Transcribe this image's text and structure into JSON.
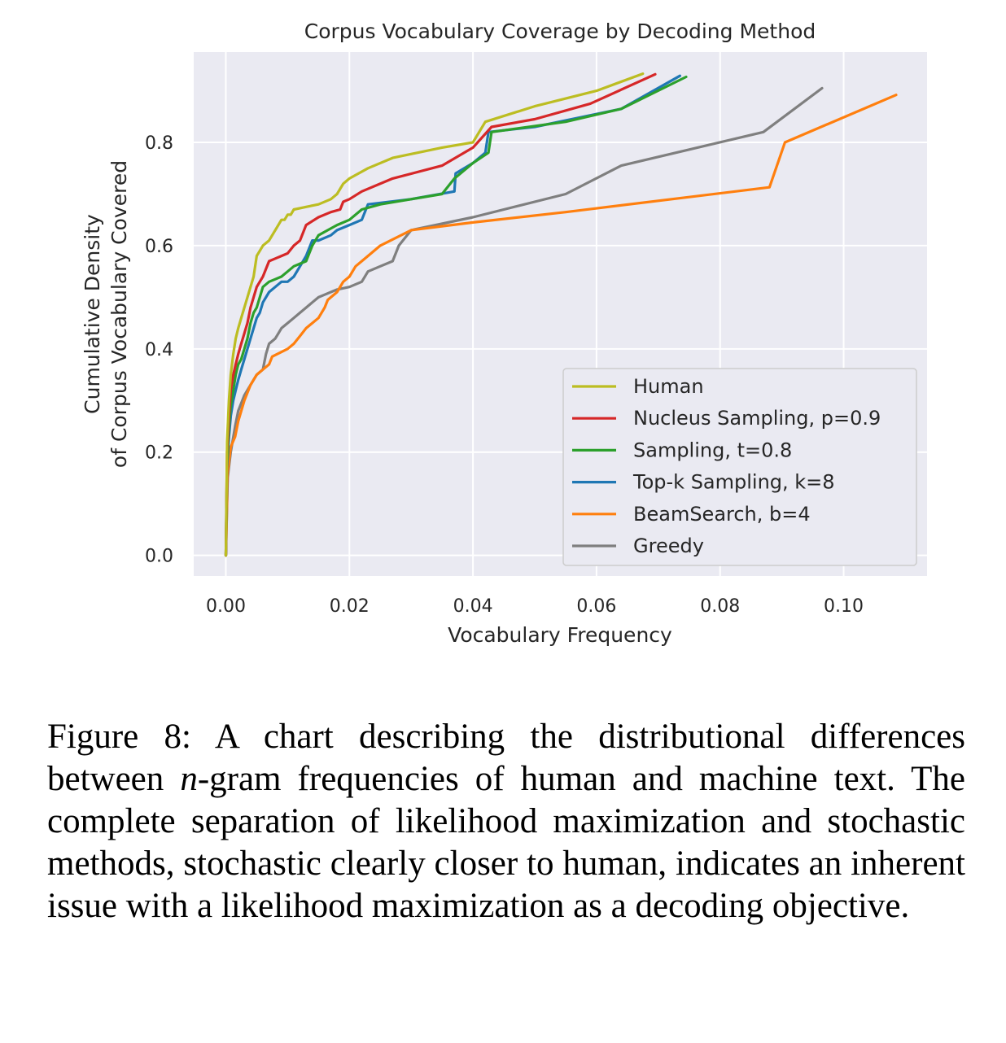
{
  "chart_data": {
    "type": "line",
    "title": "Corpus Vocabulary Coverage by Decoding Method",
    "xlabel": "Vocabulary Frequency",
    "ylabel": [
      "Cumulative Density",
      "of Corpus Vocabulary Covered"
    ],
    "xlim": [
      -0.0052,
      0.1135
    ],
    "ylim": [
      -0.04,
      0.975
    ],
    "xticks": [
      0.0,
      0.02,
      0.04,
      0.06,
      0.08,
      0.1
    ],
    "xtick_labels": [
      "0.00",
      "0.02",
      "0.04",
      "0.06",
      "0.08",
      "0.10"
    ],
    "yticks": [
      0.0,
      0.2,
      0.4,
      0.6,
      0.8
    ],
    "ytick_labels": [
      "0.0",
      "0.2",
      "0.4",
      "0.6",
      "0.8"
    ],
    "grid": true,
    "legend_position": "lower-right",
    "series": [
      {
        "name": "Human",
        "color": "#bcbd22",
        "x": [
          0,
          0.0002,
          0.0005,
          0.0008,
          0.0012,
          0.0016,
          0.002,
          0.0025,
          0.003,
          0.0035,
          0.004,
          0.0045,
          0.005,
          0.0055,
          0.006,
          0.007,
          0.008,
          0.009,
          0.0095,
          0.01,
          0.0105,
          0.011,
          0.013,
          0.015,
          0.017,
          0.018,
          0.019,
          0.02,
          0.023,
          0.027,
          0.035,
          0.04,
          0.042,
          0.05,
          0.06,
          0.0675
        ],
        "y": [
          0,
          0.22,
          0.3,
          0.35,
          0.39,
          0.42,
          0.44,
          0.46,
          0.48,
          0.5,
          0.52,
          0.54,
          0.58,
          0.59,
          0.6,
          0.61,
          0.63,
          0.65,
          0.65,
          0.66,
          0.66,
          0.67,
          0.675,
          0.68,
          0.69,
          0.7,
          0.72,
          0.73,
          0.75,
          0.77,
          0.79,
          0.8,
          0.84,
          0.87,
          0.9,
          0.933
        ]
      },
      {
        "name": "Nucleus Sampling, p=0.9",
        "color": "#d62728",
        "x": [
          0,
          0.0002,
          0.0005,
          0.0008,
          0.0012,
          0.0016,
          0.002,
          0.0025,
          0.003,
          0.0035,
          0.004,
          0.0045,
          0.005,
          0.0055,
          0.006,
          0.007,
          0.008,
          0.009,
          0.01,
          0.011,
          0.012,
          0.013,
          0.015,
          0.017,
          0.0185,
          0.019,
          0.02,
          0.022,
          0.027,
          0.035,
          0.04,
          0.043,
          0.05,
          0.059,
          0.0695
        ],
        "y": [
          0,
          0.2,
          0.27,
          0.32,
          0.35,
          0.37,
          0.39,
          0.41,
          0.43,
          0.45,
          0.48,
          0.5,
          0.52,
          0.53,
          0.54,
          0.57,
          0.575,
          0.58,
          0.585,
          0.6,
          0.61,
          0.64,
          0.655,
          0.665,
          0.67,
          0.685,
          0.69,
          0.705,
          0.73,
          0.755,
          0.79,
          0.83,
          0.845,
          0.875,
          0.932
        ]
      },
      {
        "name": "Sampling, t=0.8",
        "color": "#2ca02c",
        "x": [
          0,
          0.0002,
          0.0005,
          0.0008,
          0.0012,
          0.0016,
          0.002,
          0.0025,
          0.003,
          0.0035,
          0.004,
          0.0045,
          0.005,
          0.0055,
          0.006,
          0.007,
          0.008,
          0.009,
          0.01,
          0.011,
          0.012,
          0.013,
          0.014,
          0.015,
          0.0165,
          0.018,
          0.02,
          0.022,
          0.025,
          0.03,
          0.035,
          0.037,
          0.04,
          0.0425,
          0.043,
          0.055,
          0.064,
          0.0745
        ],
        "y": [
          0,
          0.18,
          0.25,
          0.29,
          0.32,
          0.35,
          0.37,
          0.38,
          0.4,
          0.42,
          0.45,
          0.47,
          0.48,
          0.5,
          0.52,
          0.53,
          0.535,
          0.54,
          0.55,
          0.56,
          0.565,
          0.57,
          0.6,
          0.62,
          0.63,
          0.64,
          0.65,
          0.67,
          0.68,
          0.69,
          0.7,
          0.73,
          0.76,
          0.78,
          0.82,
          0.84,
          0.865,
          0.927
        ]
      },
      {
        "name": "Top-k Sampling, k=8",
        "color": "#1f77b4",
        "x": [
          0,
          0.0002,
          0.0005,
          0.0008,
          0.0012,
          0.0016,
          0.002,
          0.0025,
          0.003,
          0.0035,
          0.004,
          0.0045,
          0.005,
          0.0055,
          0.006,
          0.007,
          0.008,
          0.009,
          0.01,
          0.011,
          0.012,
          0.013,
          0.014,
          0.015,
          0.017,
          0.018,
          0.02,
          0.022,
          0.023,
          0.03,
          0.037,
          0.0372,
          0.04,
          0.042,
          0.0425,
          0.05,
          0.064,
          0.0735
        ],
        "y": [
          0,
          0.17,
          0.23,
          0.27,
          0.3,
          0.32,
          0.34,
          0.36,
          0.38,
          0.4,
          0.42,
          0.44,
          0.46,
          0.47,
          0.49,
          0.51,
          0.52,
          0.53,
          0.53,
          0.54,
          0.56,
          0.58,
          0.61,
          0.61,
          0.62,
          0.63,
          0.64,
          0.65,
          0.68,
          0.69,
          0.705,
          0.74,
          0.76,
          0.78,
          0.82,
          0.83,
          0.865,
          0.929
        ]
      },
      {
        "name": "BeamSearch, b=4",
        "color": "#ff7f0e",
        "x": [
          0,
          0.0003,
          0.0008,
          0.0015,
          0.002,
          0.003,
          0.004,
          0.005,
          0.006,
          0.007,
          0.0075,
          0.01,
          0.011,
          0.012,
          0.013,
          0.014,
          0.015,
          0.016,
          0.0165,
          0.017,
          0.018,
          0.019,
          0.02,
          0.021,
          0.022,
          0.023,
          0.025,
          0.03,
          0.04,
          0.055,
          0.088,
          0.0905,
          0.1085
        ],
        "y": [
          0,
          0.16,
          0.21,
          0.23,
          0.26,
          0.3,
          0.33,
          0.35,
          0.36,
          0.37,
          0.385,
          0.4,
          0.41,
          0.425,
          0.44,
          0.45,
          0.46,
          0.48,
          0.495,
          0.5,
          0.51,
          0.53,
          0.54,
          0.56,
          0.57,
          0.58,
          0.6,
          0.63,
          0.645,
          0.665,
          0.713,
          0.8,
          0.892
        ]
      },
      {
        "name": "Greedy",
        "color": "#7f7f7f",
        "x": [
          0,
          0.0003,
          0.0008,
          0.0015,
          0.002,
          0.003,
          0.004,
          0.005,
          0.006,
          0.0065,
          0.007,
          0.008,
          0.0085,
          0.009,
          0.01,
          0.011,
          0.012,
          0.013,
          0.014,
          0.015,
          0.016,
          0.017,
          0.018,
          0.02,
          0.022,
          0.023,
          0.025,
          0.027,
          0.028,
          0.03,
          0.04,
          0.055,
          0.064,
          0.087,
          0.0965
        ],
        "y": [
          0,
          0.15,
          0.2,
          0.25,
          0.28,
          0.31,
          0.33,
          0.35,
          0.36,
          0.39,
          0.41,
          0.42,
          0.43,
          0.44,
          0.45,
          0.46,
          0.47,
          0.48,
          0.49,
          0.5,
          0.505,
          0.51,
          0.515,
          0.52,
          0.53,
          0.55,
          0.56,
          0.57,
          0.6,
          0.63,
          0.655,
          0.7,
          0.755,
          0.82,
          0.905
        ]
      }
    ]
  },
  "caption": {
    "prefix": "Figure 8:  A chart describing the distributional differences between ",
    "italic": "n",
    "suffix": "-gram frequencies of human and machine text. The complete separation of likelihood maximization and stochastic methods, stochastic clearly closer to human, indicates an inherent issue with a likelihood maximization as a decoding objective."
  }
}
